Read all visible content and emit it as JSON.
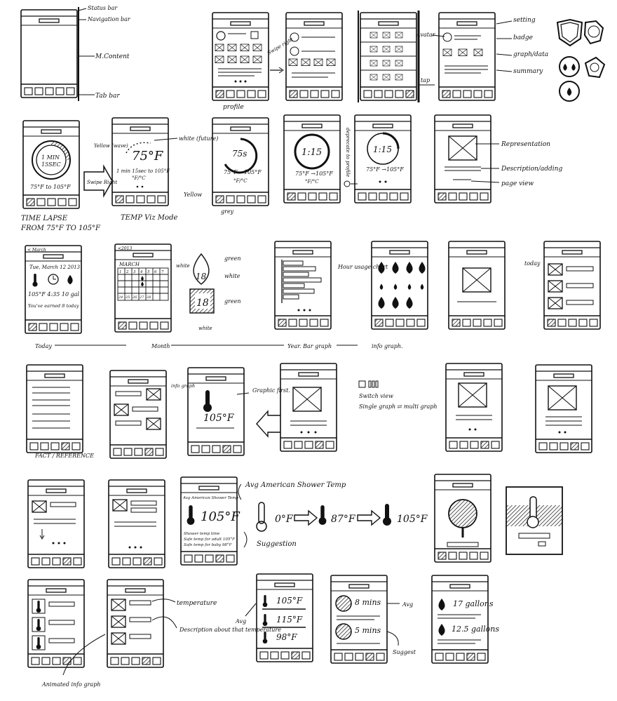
{
  "row1": {
    "status_bar": "Status bar",
    "navigation_bar": "Navigation bar",
    "main_content": "M.Content",
    "tab_bar": "Tab bar",
    "swipe_right": "Swipe right",
    "profile": "profile",
    "avatar": "Avatar",
    "setting": "setting",
    "badge": "badge",
    "graph_data": "graph/data",
    "summary": "summary",
    "tap": "tap"
  },
  "row2": {
    "timer_1": "1 MIN",
    "timer_2": "15SEC",
    "range_1": "75°F to 105°F",
    "time_lapse_1": "TIME LAPSE",
    "time_lapse_2": "FROM 75°F TO 105°F",
    "swipe_right": "Swipe Right",
    "yellow_wave": "Yellow (wave)",
    "temp_big": "75°F",
    "temp_line": "1 min 15sec to 105°F",
    "unit_toggle": "°F/°C",
    "white_future": "white (future)",
    "temp_viz_mode": "TEMP Viz Mode",
    "circle_time": "75s",
    "range_2": "75°F →105°F",
    "yellow": "Yellow",
    "grey": "grey",
    "clock_1": "1:15",
    "range_3": "75°F →105°F",
    "deprecate": "deprecate to profile",
    "clock_2": "1:15",
    "range_4": "75°F →105°F",
    "representation": "Representation",
    "description": "Description/adding",
    "page_view": "page view"
  },
  "row3": {
    "back_march": "< March",
    "date": "Tue, March 12 2013",
    "today_stats": "105°F  4:35  10 gal",
    "earned": "You've earned 8 today",
    "back_2013": "<2013",
    "march": "MARCH",
    "cal_days": [
      "1",
      "2",
      "3",
      "4",
      "5",
      "6",
      "7"
    ],
    "cal_last": [
      "24",
      "25",
      "26",
      "27",
      "28"
    ],
    "white_label": "white",
    "green_label": "green",
    "white_label_2": "white",
    "green_label_2": "green",
    "white_label_3": "white",
    "drop_num": "18",
    "square_num": "18",
    "hour_usage": "Hour usage chart",
    "today": "today",
    "flow_today": "Today",
    "flow_month": "Month",
    "flow_year": "Year. Bar graph",
    "flow_info": "info graph."
  },
  "row4": {
    "fact_reference": "FACT / REFERENCE",
    "info_graph": "info graph",
    "graphic_first": "Graphic first.",
    "temp": "105°F",
    "switch_view": "Switch view",
    "single_multi": "Single graph ⇄ multi graph"
  },
  "row5": {
    "header": "Avg American Shower Temp",
    "temp": "105°F",
    "sugg_1": "Shower temp time",
    "sugg_2": "Safe temp for adult 105°F",
    "sugg_3": "Safe temp for baby 98°F",
    "title": "Avg American Shower Temp",
    "seq_1": "0°F",
    "seq_2": "87°F",
    "seq_3": "105°F",
    "suggestion": "Suggestion"
  },
  "row6": {
    "temperature": "temperature",
    "description": "Description about that temperature",
    "animated": "Animated info graph",
    "avg": "Avg",
    "t1": "105°F",
    "t2": "115°F",
    "t3": "98°F",
    "m1": "8 mins",
    "m2": "5 mins",
    "avg2": "Avg",
    "suggest": "Suggest",
    "g1": "17 gallons",
    "g2": "12.5 gallons"
  }
}
